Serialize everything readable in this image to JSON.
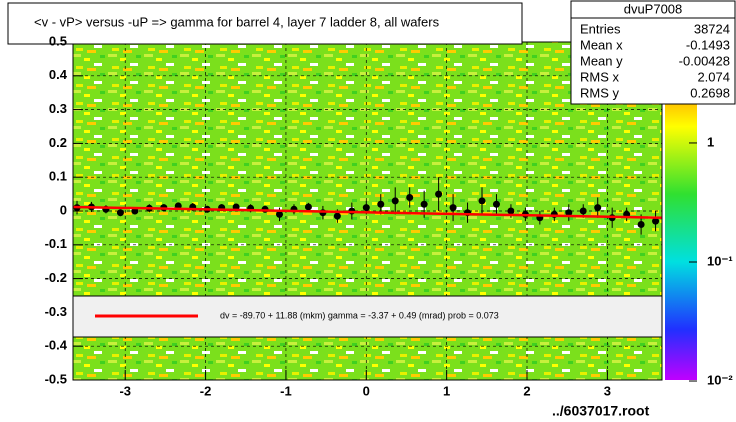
{
  "chart_data": {
    "type": "profile",
    "title": "<v - vP>       versus  -uP =>  gamma for barrel 4, layer 7 ladder 8, all wafers",
    "footer": "../6037017.root",
    "xlim": [
      -3.65,
      3.68
    ],
    "ylim": [
      -0.5,
      0.5
    ],
    "xticks": [
      -3,
      -2,
      -1,
      0,
      1,
      2,
      3
    ],
    "yticks": [
      -0.5,
      -0.4,
      -0.3,
      -0.2,
      -0.1,
      0,
      0.1,
      0.2,
      0.3,
      0.4,
      0.5
    ],
    "grid": true,
    "color": "#000000",
    "x": [
      -3.6,
      -3.42,
      -3.24,
      -3.06,
      -2.88,
      -2.7,
      -2.52,
      -2.34,
      -2.16,
      -1.98,
      -1.8,
      -1.62,
      -1.44,
      -1.26,
      -1.08,
      -0.9,
      -0.72,
      -0.54,
      -0.36,
      -0.18,
      0,
      0.18,
      0.36,
      0.54,
      0.72,
      0.9,
      1.08,
      1.26,
      1.44,
      1.62,
      1.8,
      1.98,
      2.16,
      2.34,
      2.52,
      2.7,
      2.88,
      3.06,
      3.24,
      3.42,
      3.6
    ],
    "values": [
      0.01,
      0.012,
      0.005,
      -0.005,
      0.0,
      0.008,
      0.01,
      0.015,
      0.012,
      0.005,
      0.01,
      0.012,
      0.008,
      0.005,
      -0.01,
      0.005,
      0.012,
      -0.005,
      -0.015,
      0.0,
      0.01,
      0.02,
      0.03,
      0.04,
      0.02,
      0.05,
      0.01,
      -0.005,
      0.03,
      0.02,
      0.0,
      -0.01,
      -0.02,
      -0.01,
      -0.005,
      0.0,
      0.01,
      -0.02,
      -0.01,
      -0.04,
      -0.03
    ],
    "errors": [
      0.02,
      0.015,
      0.012,
      0.01,
      0.01,
      0.012,
      0.01,
      0.01,
      0.012,
      0.01,
      0.01,
      0.01,
      0.012,
      0.01,
      0.02,
      0.015,
      0.012,
      0.02,
      0.02,
      0.025,
      0.02,
      0.03,
      0.04,
      0.03,
      0.04,
      0.05,
      0.04,
      0.03,
      0.04,
      0.03,
      0.02,
      0.02,
      0.02,
      0.02,
      0.025,
      0.02,
      0.03,
      0.03,
      0.02,
      0.03,
      0.03
    ],
    "fit": {
      "color": "#ff0000",
      "x": [
        -3.65,
        3.68
      ],
      "values": [
        0.012,
        -0.02
      ],
      "label": "dv =  -89.70 +  11.88 (mkm) gamma =   -3.37 +  0.49 (mrad) prob = 0.073"
    },
    "colorbar": {
      "log": true,
      "zlim": [
        0.0102,
        7.05
      ],
      "ticks": [
        {
          "value": 1,
          "label": "1"
        },
        {
          "value": 0.1,
          "label": "10⁻¹"
        },
        {
          "value": 0.01,
          "label": "10⁻²"
        }
      ]
    },
    "stats": {
      "title": "dvuP7008",
      "rows": [
        [
          "Entries",
          "38724"
        ],
        [
          "Mean x",
          "-0.1493"
        ],
        [
          "Mean y",
          "-0.00428"
        ],
        [
          "RMS x",
          "2.074"
        ],
        [
          "RMS y",
          "0.2698"
        ]
      ]
    }
  }
}
